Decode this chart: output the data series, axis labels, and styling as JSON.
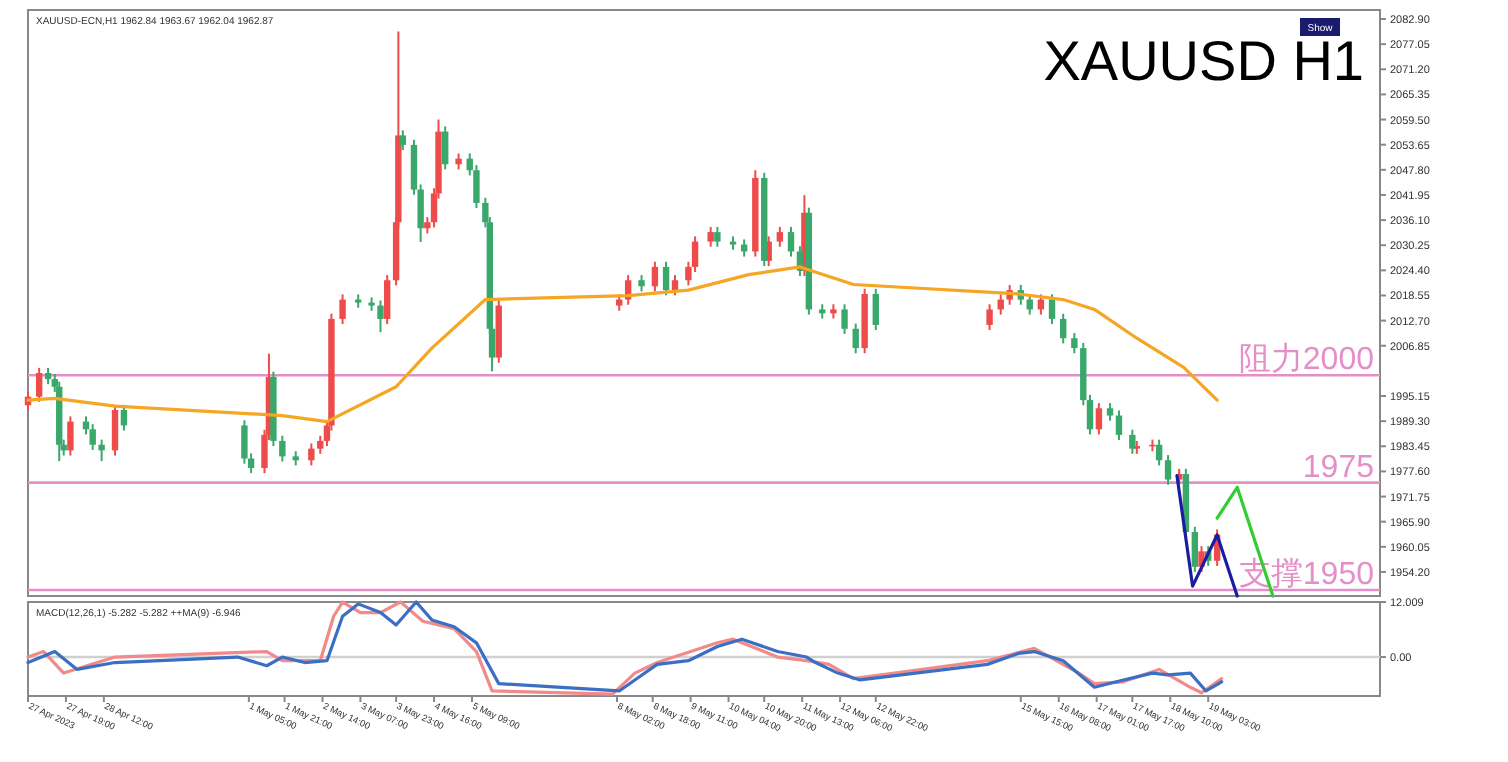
{
  "chart_data": [
    {
      "type": "candlestick",
      "title": "XAUUSD H1",
      "annotations": [
        "XAUUSD-ECN,H1  1962.84 1963.67 1962.04 1962.87",
        "Show"
      ],
      "tick_labels": "y",
      "xlim": [
        "2023-04-27T02:00",
        "2023-05-22T08:00"
      ],
      "ylim": [
        1948.6,
        2085
      ],
      "yticks": [
        {
          "value": 2082.9,
          "label": "2082.90"
        },
        {
          "value": 2077.05,
          "label": "2077.05"
        },
        {
          "value": 2071.2,
          "label": "2071.20"
        },
        {
          "value": 2065.35,
          "label": "2065.35"
        },
        {
          "value": 2059.5,
          "label": "2059.50"
        },
        {
          "value": 2053.65,
          "label": "2053.65"
        },
        {
          "value": 2047.8,
          "label": "2047.80"
        },
        {
          "value": 2041.95,
          "label": "2041.95"
        },
        {
          "value": 2036.1,
          "label": "2036.10"
        },
        {
          "value": 2030.25,
          "label": "2030.25"
        },
        {
          "value": 2024.4,
          "label": "2024.40"
        },
        {
          "value": 2018.55,
          "label": "2018.55"
        },
        {
          "value": 2012.7,
          "label": "2012.70"
        },
        {
          "value": 2006.85,
          "label": "2006.85"
        },
        {
          "value": 1995.15,
          "label": "1995.15"
        },
        {
          "value": 1989.3,
          "label": "1989.30"
        },
        {
          "value": 1983.45,
          "label": "1983.45"
        },
        {
          "value": 1977.6,
          "label": "1977.60"
        },
        {
          "value": 1971.75,
          "label": "1971.75"
        },
        {
          "value": 1965.9,
          "label": "1965.90"
        },
        {
          "value": 1960.05,
          "label": "1960.05"
        },
        {
          "value": 1954.2,
          "label": "1954.20"
        }
      ],
      "ref_lines": [
        {
          "axis": "y",
          "value": 2000,
          "label": "阻力2000",
          "color": "#e58fc8"
        },
        {
          "axis": "y",
          "value": 1975,
          "label": "1975",
          "color": "#e58fc8"
        },
        {
          "axis": "y",
          "value": 1950,
          "label": "支撑1950",
          "color": "#e58fc8"
        }
      ],
      "series": [
        {
          "color": "#ee4b4b",
          "x": [
            "2023-04-27T02:00",
            "2023-04-27T07:00",
            "2023-04-27T21:00",
            "2023-04-28T17:00",
            "2023-05-01T12:00",
            "2023-05-01T14:00",
            "2023-05-02T09:00",
            "2023-05-02T13:00",
            "2023-05-02T16:00",
            "2023-05-02T18:00",
            "2023-05-02T23:00",
            "2023-05-03T19:00",
            "2023-05-03T23:00",
            "2023-05-04T00:00",
            "2023-05-04T13:00",
            "2023-05-04T16:00",
            "2023-05-04T18:00",
            "2023-05-05T03:00",
            "2023-05-05T21:00",
            "2023-05-08T03:00",
            "2023-05-08T07:00",
            "2023-05-08T19:00",
            "2023-05-09T04:00",
            "2023-05-09T10:00",
            "2023-05-09T13:00",
            "2023-05-09T20:00",
            "2023-05-10T16:00",
            "2023-05-10T22:00",
            "2023-05-11T03:00",
            "2023-05-11T14:00",
            "2023-05-12T03:00",
            "2023-05-12T17:00",
            "2023-05-15T01:00",
            "2023-05-15T06:00",
            "2023-05-15T10:00",
            "2023-05-16T00:00",
            "2023-05-17T02:00",
            "2023-05-17T19:00",
            "2023-05-18T02:00",
            "2023-05-18T14:00",
            "2023-05-19T00:00",
            "2023-05-19T07:00"
          ],
          "ohlc": [
            [
              1993.0,
              1996.2,
              1991.8,
              1995.0
            ],
            [
              1995.0,
              2001.7,
              1993.8,
              2000.5
            ],
            [
              1982.5,
              1990.4,
              1981.3,
              1989.2
            ],
            [
              1982.5,
              1993.1,
              1981.3,
              1991.9
            ],
            [
              1978.4,
              1987.3,
              1977.2,
              1986.1
            ],
            [
              1986.1,
              2005.0,
              1984.9,
              1999.6
            ],
            [
              1980.2,
              1984.1,
              1979.0,
              1982.9
            ],
            [
              1982.9,
              1985.9,
              1981.7,
              1984.7
            ],
            [
              1984.7,
              1989.5,
              1983.5,
              1988.3
            ],
            [
              1988.3,
              2014.3,
              1987.1,
              2013.1
            ],
            [
              2013.1,
              2018.8,
              2011.9,
              2017.6
            ],
            [
              2013.1,
              2023.3,
              2011.9,
              2022.1
            ],
            [
              2022.1,
              2036.8,
              2020.9,
              2035.6
            ],
            [
              2035.6,
              2080.0,
              2034.4,
              2055.8
            ],
            [
              2034.2,
              2036.8,
              2033.0,
              2035.6
            ],
            [
              2035.6,
              2043.5,
              2034.4,
              2042.3
            ],
            [
              2042.3,
              2059.5,
              2041.1,
              2056.7
            ],
            [
              2049.1,
              2051.6,
              2047.9,
              2050.4
            ],
            [
              2004.1,
              2017.4,
              2002.9,
              2016.2
            ],
            [
              2016.2,
              2018.8,
              2015.0,
              2017.6
            ],
            [
              2017.6,
              2023.3,
              2016.4,
              2022.1
            ],
            [
              2020.7,
              2026.4,
              2019.5,
              2025.2
            ],
            [
              2019.8,
              2023.3,
              2018.6,
              2022.1
            ],
            [
              2022.1,
              2026.4,
              2020.9,
              2025.2
            ],
            [
              2025.2,
              2032.3,
              2024.0,
              2031.1
            ],
            [
              2031.1,
              2034.5,
              2029.9,
              2033.3
            ],
            [
              2028.8,
              2047.7,
              2027.6,
              2045.9
            ],
            [
              2026.6,
              2032.3,
              2025.4,
              2031.1
            ],
            [
              2031.1,
              2034.5,
              2029.9,
              2033.3
            ],
            [
              2024.3,
              2041.9,
              2023.1,
              2037.8
            ],
            [
              2014.4,
              2016.5,
              2013.2,
              2015.3
            ],
            [
              2006.3,
              2020.1,
              2005.1,
              2018.9
            ],
            [
              2011.7,
              2016.5,
              2010.5,
              2015.3
            ],
            [
              2015.3,
              2018.8,
              2014.1,
              2017.6
            ],
            [
              2017.6,
              2021.0,
              2016.4,
              2019.8
            ],
            [
              2015.3,
              2018.8,
              2014.1,
              2017.6
            ],
            [
              1987.4,
              1993.5,
              1986.2,
              1992.3
            ],
            [
              1982.9,
              1984.7,
              1981.7,
              1983.5
            ],
            [
              1983.5,
              1985.0,
              1982.3,
              1983.8
            ],
            [
              1975.7,
              1978.2,
              1974.5,
              1977.0
            ],
            [
              1955.4,
              1960.2,
              1954.2,
              1959.0
            ],
            [
              1956.8,
              1964.1,
              1955.6,
              1962.9
            ]
          ]
        },
        {
          "color": "#3aa86b",
          "x": [
            "2023-04-27T11:00",
            "2023-04-27T14:00",
            "2023-04-27T16:00",
            "2023-04-27T18:00",
            "2023-04-28T04:00",
            "2023-04-28T07:00",
            "2023-04-28T11:00",
            "2023-04-28T21:00",
            "2023-05-01T03:00",
            "2023-05-01T06:00",
            "2023-05-01T16:00",
            "2023-05-01T20:00",
            "2023-05-02T02:00",
            "2023-05-03T06:00",
            "2023-05-03T12:00",
            "2023-05-03T16:00",
            "2023-05-04T02:00",
            "2023-05-04T07:00",
            "2023-05-04T10:00",
            "2023-05-04T21:00",
            "2023-05-05T08:00",
            "2023-05-05T11:00",
            "2023-05-05T15:00",
            "2023-05-05T17:00",
            "2023-05-05T18:00",
            "2023-05-08T13:00",
            "2023-05-09T00:00",
            "2023-05-09T23:00",
            "2023-05-10T06:00",
            "2023-05-10T11:00",
            "2023-05-10T20:00",
            "2023-05-11T08:00",
            "2023-05-11T12:00",
            "2023-05-11T16:00",
            "2023-05-11T22:00",
            "2023-05-12T08:00",
            "2023-05-12T13:00",
            "2023-05-12T22:00",
            "2023-05-15T15:00",
            "2023-05-15T19:00",
            "2023-05-16T05:00",
            "2023-05-16T10:00",
            "2023-05-16T15:00",
            "2023-05-16T19:00",
            "2023-05-16T22:00",
            "2023-05-17T07:00",
            "2023-05-17T11:00",
            "2023-05-17T17:00",
            "2023-05-18T05:00",
            "2023-05-18T09:00",
            "2023-05-18T17:00",
            "2023-05-18T21:00",
            "2023-05-19T03:00"
          ],
          "ohlc": [
            [
              2000.5,
              2001.7,
              1997.9,
              1999.1
            ],
            [
              1999.1,
              2000.3,
              1996.1,
              1997.3
            ],
            [
              1997.3,
              1998.5,
              1980.0,
              1983.8
            ],
            [
              1983.8,
              1985.0,
              1981.3,
              1982.5
            ],
            [
              1989.2,
              1990.4,
              1986.2,
              1987.4
            ],
            [
              1987.4,
              1988.6,
              1982.6,
              1983.8
            ],
            [
              1983.8,
              1985.0,
              1980.0,
              1982.5
            ],
            [
              1991.9,
              1993.1,
              1987.1,
              1988.3
            ],
            [
              1988.3,
              1989.5,
              1979.4,
              1980.6
            ],
            [
              1980.6,
              1981.8,
              1977.2,
              1978.4
            ],
            [
              1999.6,
              2000.8,
              1983.5,
              1984.7
            ],
            [
              1984.7,
              1985.9,
              1979.9,
              1981.1
            ],
            [
              1981.1,
              1982.3,
              1979.0,
              1980.2
            ],
            [
              2017.6,
              2018.8,
              2015.7,
              2016.9
            ],
            [
              2016.9,
              2018.1,
              2015.0,
              2016.2
            ],
            [
              2016.2,
              2017.4,
              2010.0,
              2013.1
            ],
            [
              2055.8,
              2057.0,
              2052.4,
              2053.6
            ],
            [
              2053.6,
              2054.8,
              2042.0,
              2043.2
            ],
            [
              2043.2,
              2044.4,
              2031.0,
              2034.2
            ],
            [
              2056.7,
              2057.9,
              2047.9,
              2049.1
            ],
            [
              2050.4,
              2051.6,
              2046.5,
              2047.7
            ],
            [
              2047.7,
              2048.9,
              2038.9,
              2040.1
            ],
            [
              2040.1,
              2041.3,
              2034.4,
              2035.6
            ],
            [
              2035.6,
              2036.8,
              2009.6,
              2010.8
            ],
            [
              2010.8,
              2012.0,
              2000.9,
              2004.1
            ],
            [
              2022.1,
              2023.3,
              2019.5,
              2020.7
            ],
            [
              2025.2,
              2026.4,
              2018.6,
              2019.8
            ],
            [
              2033.3,
              2034.5,
              2029.9,
              2031.1
            ],
            [
              2031.1,
              2032.3,
              2029.2,
              2030.4
            ],
            [
              2030.4,
              2031.6,
              2027.6,
              2028.8
            ],
            [
              2045.9,
              2047.1,
              2025.4,
              2026.6
            ],
            [
              2033.3,
              2034.5,
              2027.6,
              2028.8
            ],
            [
              2028.8,
              2030.0,
              2023.1,
              2024.3
            ],
            [
              2037.8,
              2039.0,
              2014.1,
              2015.3
            ],
            [
              2015.3,
              2016.5,
              2013.2,
              2014.4
            ],
            [
              2015.3,
              2016.5,
              2009.6,
              2010.8
            ],
            [
              2010.8,
              2012.0,
              2005.1,
              2006.3
            ],
            [
              2018.9,
              2020.1,
              2010.5,
              2011.7
            ],
            [
              2019.8,
              2021.0,
              2016.4,
              2017.6
            ],
            [
              2017.6,
              2018.8,
              2014.1,
              2015.3
            ],
            [
              2017.6,
              2018.8,
              2011.9,
              2013.1
            ],
            [
              2013.1,
              2014.3,
              2007.4,
              2008.6
            ],
            [
              2008.6,
              2009.8,
              2005.1,
              2006.3
            ],
            [
              2006.3,
              2007.5,
              1993.0,
              1994.2
            ],
            [
              1994.2,
              1995.4,
              1986.2,
              1987.4
            ],
            [
              1992.3,
              1993.5,
              1989.4,
              1990.6
            ],
            [
              1990.6,
              1991.8,
              1984.9,
              1986.1
            ],
            [
              1986.1,
              1987.3,
              1981.7,
              1982.9
            ],
            [
              1983.8,
              1985.0,
              1979.0,
              1980.2
            ],
            [
              1980.2,
              1981.4,
              1974.5,
              1975.7
            ],
            [
              1977.0,
              1978.2,
              1962.3,
              1963.5
            ],
            [
              1963.5,
              1964.7,
              1954.2,
              1955.4
            ],
            [
              1959.0,
              1960.2,
              1955.6,
              1956.8
            ]
          ]
        },
        {
          "type": "line",
          "color": "#f5a623",
          "x": [
            "2023-04-27T02:00",
            "2023-04-27T14:00",
            "2023-04-28T17:00",
            "2023-05-01T20:00",
            "2023-05-02T16:00",
            "2023-05-03T23:00",
            "2023-05-04T15:00",
            "2023-05-05T15:00",
            "2023-05-08T07:00",
            "2023-05-09T10:00",
            "2023-05-10T13:00",
            "2023-05-11T12:00",
            "2023-05-12T12:00",
            "2023-05-15T14:00",
            "2023-05-16T10:00",
            "2023-05-17T00:00",
            "2023-05-17T19:00",
            "2023-05-18T16:00",
            "2023-05-19T07:00"
          ],
          "values": [
            1994.2,
            1994.6,
            1992.8,
            1990.6,
            1989.2,
            1997.3,
            2006.3,
            2017.6,
            2018.5,
            2019.8,
            2023.4,
            2025.2,
            2021.1,
            2018.9,
            2017.6,
            2015.3,
            2008.6,
            2001.8,
            1994.2
          ]
        },
        {
          "type": "line",
          "color": "#1c1ca0",
          "x": [
            "2023-05-18T13:00",
            "2023-05-18T20:00",
            "2023-05-19T07:00",
            "2023-05-19T16:00"
          ],
          "values": [
            1976.6,
            1950.9,
            1962.8,
            1948.6
          ]
        },
        {
          "type": "line",
          "color": "#33cc33",
          "x": [
            "2023-05-19T07:00",
            "2023-05-19T16:00",
            "2023-05-20T08:00"
          ],
          "values": [
            1966.7,
            1973.9,
            1948.6
          ]
        }
      ]
    },
    {
      "type": "line",
      "annotations": [
        "MACD(12,26,1) -5.282 -5.282 ++MA(9) -6.946"
      ],
      "xlim": [
        "2023-04-27T02:00",
        "2023-05-22T08:00"
      ],
      "ylim": [
        -8.5,
        12.009
      ],
      "yticks": [
        12.009,
        {
          "value": 0,
          "label": "0.00"
        }
      ],
      "xticks": [
        {
          "value": "2023-04-27T02:00",
          "label": "27 Apr 2023"
        },
        {
          "value": "2023-04-27T19:00",
          "label": "27 Apr 19:00"
        },
        {
          "value": "2023-04-28T12:00",
          "label": "28 Apr 12:00"
        },
        {
          "value": "2023-05-01T05:00",
          "label": "1 May 05:00"
        },
        {
          "value": "2023-05-01T21:00",
          "label": "1 May 21:00"
        },
        {
          "value": "2023-05-02T14:00",
          "label": "2 May 14:00"
        },
        {
          "value": "2023-05-03T07:00",
          "label": "3 May 07:00"
        },
        {
          "value": "2023-05-03T23:00",
          "label": "3 May 23:00"
        },
        {
          "value": "2023-05-04T16:00",
          "label": "4 May 16:00"
        },
        {
          "value": "2023-05-05T09:00",
          "label": "5 May 09:00"
        },
        {
          "value": "2023-05-08T02:00",
          "label": "8 May 02:00"
        },
        {
          "value": "2023-05-08T18:00",
          "label": "8 May 18:00"
        },
        {
          "value": "2023-05-09T11:00",
          "label": "9 May 11:00"
        },
        {
          "value": "2023-05-10T04:00",
          "label": "10 May 04:00"
        },
        {
          "value": "2023-05-10T20:00",
          "label": "10 May 20:00"
        },
        {
          "value": "2023-05-11T13:00",
          "label": "11 May 13:00"
        },
        {
          "value": "2023-05-12T06:00",
          "label": "12 May 06:00"
        },
        {
          "value": "2023-05-12T22:00",
          "label": "12 May 22:00"
        },
        {
          "value": "2023-05-15T15:00",
          "label": "15 May 15:00"
        },
        {
          "value": "2023-05-16T08:00",
          "label": "16 May 08:00"
        },
        {
          "value": "2023-05-17T01:00",
          "label": "17 May 01:00"
        },
        {
          "value": "2023-05-17T17:00",
          "label": "17 May 17:00"
        },
        {
          "value": "2023-05-18T10:00",
          "label": "18 May 10:00"
        },
        {
          "value": "2023-05-19T03:00",
          "label": "19 May 03:00"
        }
      ],
      "ref_lines": [
        {
          "axis": "y",
          "value": 0,
          "color": "#d0d0d0"
        }
      ],
      "series": [
        {
          "color": "#f28a8a",
          "x": [
            "2023-04-27T02:00",
            "2023-04-27T09:00",
            "2023-04-27T18:00",
            "2023-04-28T17:00",
            "2023-05-01T13:00",
            "2023-05-01T20:00",
            "2023-05-02T13:00",
            "2023-05-02T19:00",
            "2023-05-02T23:00",
            "2023-05-03T07:00",
            "2023-05-03T16:00",
            "2023-05-04T01:00",
            "2023-05-04T11:00",
            "2023-05-05T01:00",
            "2023-05-05T11:00",
            "2023-05-05T18:00",
            "2023-05-08T00:00",
            "2023-05-08T10:00",
            "2023-05-08T20:00",
            "2023-05-09T23:00",
            "2023-05-10T06:00",
            "2023-05-11T02:00",
            "2023-05-11T15:00",
            "2023-05-12T01:00",
            "2023-05-12T12:00",
            "2023-05-15T00:00",
            "2023-05-15T21:00",
            "2023-05-16T17:00",
            "2023-05-17T00:00",
            "2023-05-17T13:00",
            "2023-05-18T05:00",
            "2023-05-18T19:00",
            "2023-05-19T00:00",
            "2023-05-19T09:00"
          ],
          "values": [
            0,
            1.2,
            -3.5,
            0,
            1.2,
            -0.8,
            -0.8,
            8.9,
            12.0,
            9.7,
            9.7,
            12.0,
            7.8,
            6.2,
            1.2,
            -7.4,
            -8.1,
            -3.5,
            -1.2,
            3.1,
            3.9,
            0,
            -0.8,
            -1.6,
            -4.7,
            -0.8,
            1.9,
            -3.5,
            -5.8,
            -5.4,
            -2.7,
            -6.6,
            -7.8,
            -4.7
          ]
        },
        {
          "color": "#3a6fc4",
          "x": [
            "2023-04-27T02:00",
            "2023-04-27T14:00",
            "2023-04-28T00:00",
            "2023-04-28T17:00",
            "2023-05-01T00:00",
            "2023-05-01T13:00",
            "2023-05-01T20:00",
            "2023-05-02T06:00",
            "2023-05-02T16:00",
            "2023-05-02T23:00",
            "2023-05-03T06:00",
            "2023-05-03T16:00",
            "2023-05-03T23:00",
            "2023-05-04T08:00",
            "2023-05-04T15:00",
            "2023-05-05T01:00",
            "2023-05-05T11:00",
            "2023-05-05T21:00",
            "2023-05-08T03:00",
            "2023-05-08T10:00",
            "2023-05-08T20:00",
            "2023-05-09T10:00",
            "2023-05-09T23:00",
            "2023-05-10T10:00",
            "2023-05-11T02:00",
            "2023-05-11T15:00",
            "2023-05-11T19:00",
            "2023-05-12T05:00",
            "2023-05-12T15:00",
            "2023-05-15T00:00",
            "2023-05-15T14:00",
            "2023-05-15T21:00",
            "2023-05-16T10:00",
            "2023-05-17T00:00",
            "2023-05-17T13:00",
            "2023-05-18T02:00",
            "2023-05-18T09:00",
            "2023-05-18T19:00",
            "2023-05-19T02:00",
            "2023-05-19T09:00"
          ],
          "values": [
            -1.2,
            1.2,
            -2.7,
            -1.2,
            0,
            -1.9,
            0,
            -1.2,
            -0.8,
            8.9,
            11.6,
            9.7,
            7.0,
            12.0,
            8.1,
            6.6,
            3.1,
            -5.8,
            -7.4,
            -5.0,
            -1.6,
            -0.8,
            2.3,
            3.9,
            1.2,
            0,
            -1.2,
            -3.5,
            -5.0,
            -1.6,
            0.8,
            1.2,
            -0.8,
            -6.6,
            -5.0,
            -3.5,
            -3.9,
            -3.5,
            -7.4,
            -5.4
          ]
        }
      ]
    }
  ]
}
